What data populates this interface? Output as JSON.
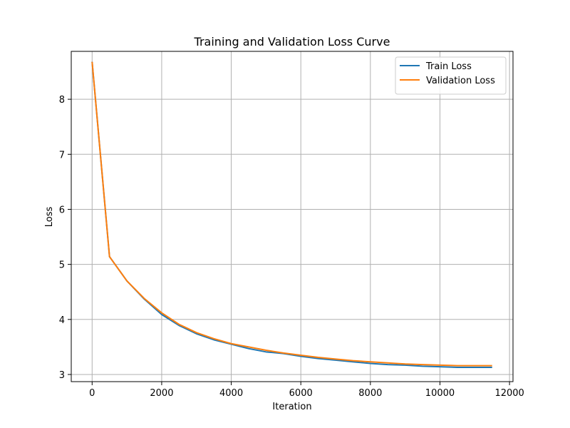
{
  "chart_data": {
    "type": "line",
    "title": "Training and Validation Loss Curve",
    "xlabel": "Iteration",
    "ylabel": "Loss",
    "xlim": [
      -600,
      12100
    ],
    "ylim": [
      2.87,
      8.87
    ],
    "xticks": [
      0,
      2000,
      4000,
      6000,
      8000,
      10000,
      12000
    ],
    "yticks": [
      3,
      4,
      5,
      6,
      7,
      8
    ],
    "grid": true,
    "legend_position": "top-right",
    "x": [
      0,
      500,
      1000,
      1500,
      2000,
      2500,
      3000,
      3500,
      4000,
      4500,
      5000,
      5500,
      6000,
      6500,
      7000,
      7500,
      8000,
      8500,
      9000,
      9500,
      10000,
      10500,
      11000,
      11500
    ],
    "series": [
      {
        "name": "Train Loss",
        "color": "#1f77b4",
        "values": [
          8.68,
          5.14,
          4.7,
          4.37,
          4.09,
          3.89,
          3.74,
          3.63,
          3.55,
          3.47,
          3.41,
          3.38,
          3.33,
          3.29,
          3.26,
          3.23,
          3.2,
          3.18,
          3.17,
          3.15,
          3.14,
          3.13,
          3.13,
          3.13
        ]
      },
      {
        "name": "Validation Loss",
        "color": "#ff7f0e",
        "values": [
          8.68,
          5.14,
          4.7,
          4.38,
          4.12,
          3.91,
          3.76,
          3.65,
          3.56,
          3.5,
          3.44,
          3.39,
          3.35,
          3.31,
          3.28,
          3.25,
          3.23,
          3.21,
          3.19,
          3.18,
          3.17,
          3.16,
          3.16,
          3.16
        ]
      }
    ]
  }
}
